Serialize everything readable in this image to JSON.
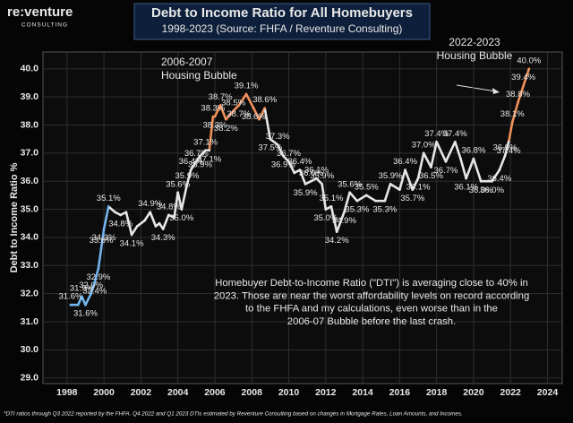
{
  "chart_data": {
    "type": "line",
    "logo": {
      "name": "re:venture",
      "tagline": "CONSULTING"
    },
    "title": "Debt to Income Ratio for All Homebuyers",
    "subtitle": "1998-2023 (Source: FHFA / Reventure Consulting)",
    "y_label": "Debt to Income Ratio %",
    "footnote": "*DTI ratios through Q3 2022 reported by the FHFA. Q4 2022 and Q1 2023 DTIs estimated by Reventure Consulting based on changes in Mortgage Rates, Loan Amounts, and Incomes.",
    "annotations": [
      {
        "text": [
          "2006-2007",
          "Housing Bubble"
        ]
      },
      {
        "text": [
          "2022-2023",
          "Housing Bubble"
        ]
      },
      {
        "text": [
          "Homebuyer Debt-to-Income Ratio (\"DTI\") is averaging close to 40% in",
          "2023. Those are near the worst affordability levels on record according",
          "to the FHFA and my calculations, even worse than in the",
          "2006-07 Bubble before the last crash."
        ]
      }
    ],
    "x": [
      1998.2,
      1998.6,
      1998.8,
      1999.0,
      1999.3,
      1999.5,
      1999.7,
      1999.85,
      2000.0,
      2000.25,
      2000.6,
      2000.9,
      2001.2,
      2001.5,
      2001.8,
      2002.2,
      2002.5,
      2002.8,
      2003.0,
      2003.2,
      2003.5,
      2003.8,
      2004.0,
      2004.2,
      2004.5,
      2004.7,
      2005.0,
      2005.2,
      2005.5,
      2005.7,
      2005.9,
      2006.0,
      2006.3,
      2006.6,
      2007.0,
      2007.3,
      2007.7,
      2008.1,
      2008.4,
      2008.7,
      2009.0,
      2009.4,
      2009.7,
      2010.0,
      2010.3,
      2010.6,
      2010.9,
      2011.2,
      2011.5,
      2011.8,
      2012.0,
      2012.3,
      2012.6,
      2013.0,
      2013.3,
      2013.7,
      2014.2,
      2014.7,
      2015.2,
      2015.5,
      2016.0,
      2016.3,
      2016.7,
      2017.0,
      2017.3,
      2017.7,
      2018.0,
      2018.5,
      2019.0,
      2019.3,
      2019.6,
      2020.0,
      2020.4,
      2021.0,
      2021.4,
      2021.7,
      2021.9,
      2022.1,
      2022.4,
      2022.7,
      2023.0
    ],
    "values": [
      31.6,
      31.6,
      31.9,
      31.6,
      32.0,
      32.4,
      32.9,
      33.6,
      34.3,
      35.1,
      34.9,
      34.8,
      34.9,
      34.1,
      34.4,
      34.6,
      34.9,
      34.4,
      34.5,
      34.3,
      34.8,
      34.7,
      35.6,
      35.0,
      35.9,
      36.4,
      36.7,
      36.9,
      37.1,
      37.1,
      38.3,
      38.3,
      38.7,
      38.2,
      38.5,
      38.7,
      39.1,
      38.6,
      38.2,
      38.6,
      37.5,
      37.3,
      36.9,
      36.7,
      36.3,
      36.4,
      35.9,
      36.0,
      36.1,
      35.9,
      35.0,
      35.1,
      34.2,
      34.9,
      35.6,
      35.3,
      35.5,
      35.3,
      35.3,
      35.9,
      35.7,
      36.4,
      35.7,
      36.1,
      37.0,
      36.5,
      37.4,
      36.7,
      37.4,
      36.8,
      36.1,
      36.8,
      36.0,
      36.0,
      36.4,
      36.9,
      37.4,
      38.1,
      38.8,
      39.4,
      40.0
    ],
    "value_labels": [
      "31.6%",
      null,
      "31.9%",
      "31.6%",
      "32.0%",
      "32.4%",
      "32.9%",
      "33.6%",
      "34.3%",
      "35.1%",
      null,
      "34.8%",
      null,
      "34.1%",
      null,
      null,
      "34.9%",
      null,
      null,
      "34.3%",
      "34.8%",
      null,
      "35.6%",
      "35.0%",
      "35.9%",
      "36.4%",
      "36.7%",
      "36.9%",
      "37.1%",
      "37.1%",
      "38.3%",
      "38.3%",
      "38.7%",
      "38.2%",
      "38.5%",
      "38.7%",
      "39.1%",
      "38.6%",
      null,
      "38.6%",
      "37.5%",
      "37.3%",
      "36.9%",
      "36.7%",
      null,
      "36.4%",
      "35.9%",
      "36.0%",
      "36.1%",
      "35.9%",
      "35.0%",
      "35.1%",
      "34.2%",
      "34.9%",
      "35.6%",
      "35.3%",
      "35.5%",
      null,
      "35.3%",
      "35.9%",
      null,
      "36.4%",
      "35.7%",
      "36.1%",
      "37.0%",
      "36.5%",
      "37.4%",
      "36.7%",
      "37.4%",
      null,
      "36.1%",
      "36.8%",
      "36.0%",
      "36.0%",
      "36.4%",
      "36.9%",
      "37.4%",
      "38.1%",
      "38.8%",
      "39.4%",
      "40.0%"
    ],
    "colors": [
      "#74b4ee",
      "#74b4ee",
      "#74b4ee",
      "#74b4ee",
      "#74b4ee",
      "#74b4ee",
      "#74b4ee",
      "#74b4ee",
      "#74b4ee",
      "#74b4ee",
      "#e6e6e6",
      "#e6e6e6",
      "#e6e6e6",
      "#e6e6e6",
      "#e6e6e6",
      "#e6e6e6",
      "#e6e6e6",
      "#e6e6e6",
      "#e6e6e6",
      "#e6e6e6",
      "#e6e6e6",
      "#e6e6e6",
      "#e6e6e6",
      "#e6e6e6",
      "#e6e6e6",
      "#e6e6e6",
      "#e6e6e6",
      "#e6e6e6",
      "#e6e6e6",
      "#e6e6e6",
      "#f0905a",
      "#f0905a",
      "#f0905a",
      "#f0905a",
      "#f0905a",
      "#f0905a",
      "#f0905a",
      "#f0905a",
      "#f0905a",
      "#f0905a",
      "#e6e6e6",
      "#e6e6e6",
      "#e6e6e6",
      "#e6e6e6",
      "#e6e6e6",
      "#e6e6e6",
      "#e6e6e6",
      "#e6e6e6",
      "#e6e6e6",
      "#e6e6e6",
      "#e6e6e6",
      "#e6e6e6",
      "#e6e6e6",
      "#e6e6e6",
      "#e6e6e6",
      "#e6e6e6",
      "#e6e6e6",
      "#e6e6e6",
      "#e6e6e6",
      "#e6e6e6",
      "#e6e6e6",
      "#e6e6e6",
      "#e6e6e6",
      "#e6e6e6",
      "#e6e6e6",
      "#e6e6e6",
      "#e6e6e6",
      "#e6e6e6",
      "#e6e6e6",
      "#e6e6e6",
      "#e6e6e6",
      "#e6e6e6",
      "#e6e6e6",
      "#e6e6e6",
      "#e6e6e6",
      "#e6e6e6",
      "#e6e6e6",
      "#f0905a",
      "#f0905a",
      "#f0905a",
      "#f0905a"
    ],
    "xlim": [
      1996.7,
      2024.8
    ],
    "xticks": [
      1998,
      2000,
      2002,
      2004,
      2006,
      2008,
      2010,
      2012,
      2014,
      2016,
      2018,
      2020,
      2022,
      2024
    ],
    "ylim": [
      28.8,
      40.6
    ],
    "yticks": [
      {
        "value": 29,
        "label": "29.0"
      },
      {
        "value": 30,
        "label": "30.0"
      },
      {
        "value": 31,
        "label": "31.0"
      },
      {
        "value": 32,
        "label": "32.0"
      },
      {
        "value": 33,
        "label": "33.0"
      },
      {
        "value": 34,
        "label": "34.0"
      },
      {
        "value": 35,
        "label": "35.0"
      },
      {
        "value": 36,
        "label": "36.0"
      },
      {
        "value": 37,
        "label": "37.0"
      },
      {
        "value": 38,
        "label": "38.0"
      },
      {
        "value": 39,
        "label": "39.0"
      },
      {
        "value": 40,
        "label": "40.0"
      }
    ],
    "grid": true
  }
}
